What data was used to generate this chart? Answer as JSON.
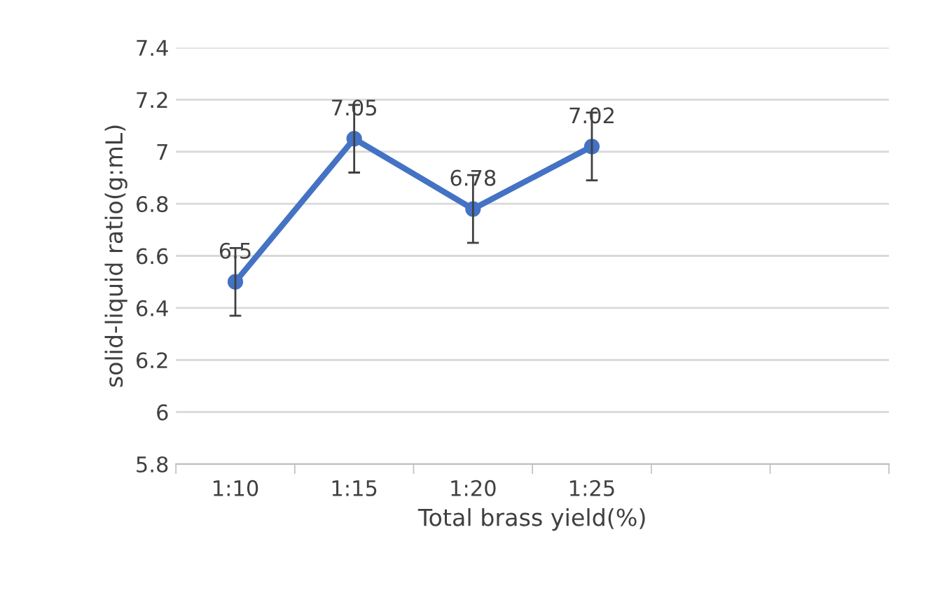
{
  "chart_data": {
    "type": "line",
    "xlabel": "Total brass yield(%)",
    "ylabel": "solid-liquid ratio(g:mL)",
    "categories": [
      "1:10",
      "1:15",
      "1:20",
      "1:25",
      null,
      null
    ],
    "series": [
      {
        "color": "#4472c4",
        "values": [
          6.5,
          7.05,
          6.78,
          7.02,
          null,
          null
        ],
        "errors": [
          0.13,
          0.13,
          0.13,
          0.13,
          null,
          null
        ]
      }
    ],
    "ylim": [
      5.8,
      7.4
    ],
    "yticks": [
      5.8,
      6,
      6.2,
      6.4,
      6.6,
      6.8,
      7,
      7.2,
      7.4
    ],
    "grid": "y",
    "marker": "circle",
    "line_style": "solid",
    "data_labels": true
  }
}
